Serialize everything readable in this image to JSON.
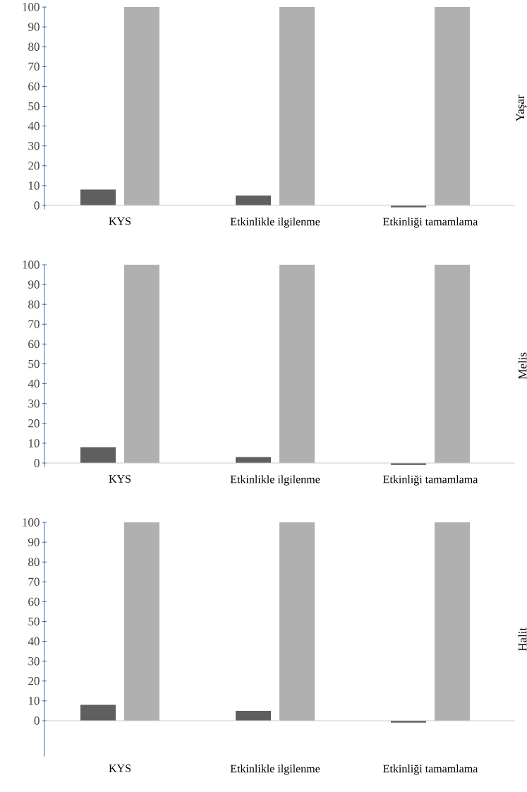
{
  "chart_data": [
    {
      "type": "bar",
      "ylabel": "Yaşar",
      "categories": [
        "KYS",
        "Etkinlikle ilgilenme",
        "Etkinliği tamamlama"
      ],
      "series": [
        {
          "color": "#5f5f5f",
          "values": [
            8,
            5,
            -1
          ]
        },
        {
          "color": "#b0b0b0",
          "values": [
            100,
            100,
            100
          ]
        }
      ],
      "ylim": [
        -2,
        100
      ],
      "yticks": [
        0,
        10,
        20,
        30,
        40,
        50,
        60,
        70,
        80,
        90,
        100
      ]
    },
    {
      "type": "bar",
      "ylabel": "Melis",
      "categories": [
        "KYS",
        "Etkinlikle ilgilenme",
        "Etkinliği tamamlama"
      ],
      "series": [
        {
          "color": "#5f5f5f",
          "values": [
            8,
            3,
            -1
          ]
        },
        {
          "color": "#b0b0b0",
          "values": [
            100,
            100,
            100
          ]
        }
      ],
      "ylim": [
        -2,
        100
      ],
      "yticks": [
        0,
        10,
        20,
        30,
        40,
        50,
        60,
        70,
        80,
        90,
        100
      ]
    },
    {
      "type": "bar",
      "ylabel": "Halit",
      "categories": [
        "KYS",
        "Etkinlikle ilgilenme",
        "Etkinliği tamamlama"
      ],
      "series": [
        {
          "color": "#5f5f5f",
          "values": [
            8,
            5,
            -1
          ]
        },
        {
          "color": "#b0b0b0",
          "values": [
            100,
            100,
            100
          ]
        }
      ],
      "ylim": [
        -18,
        100
      ],
      "yticks": [
        0,
        10,
        20,
        30,
        40,
        50,
        60,
        70,
        80,
        90,
        100
      ]
    }
  ]
}
